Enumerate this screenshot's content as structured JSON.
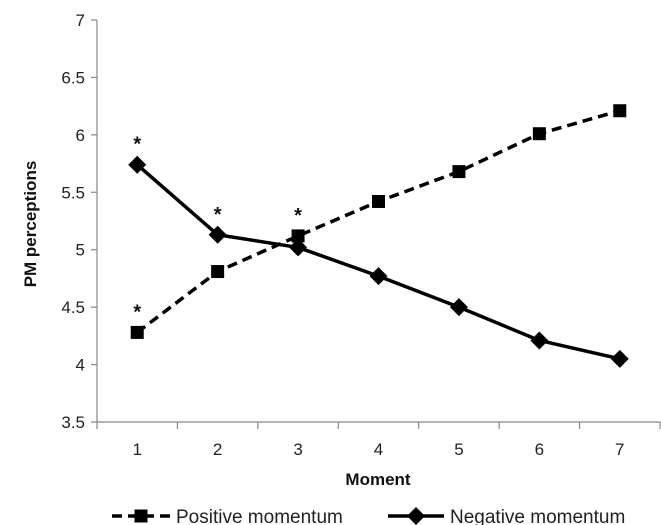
{
  "chart_data": {
    "type": "line",
    "title": "",
    "xlabel": "Moment",
    "ylabel": "PM perceptions",
    "x": [
      1,
      2,
      3,
      4,
      5,
      6,
      7
    ],
    "ylim": [
      3.5,
      7
    ],
    "yticks": [
      "3.5",
      "4",
      "4.5",
      "5",
      "5.5",
      "6",
      "6.5",
      "7"
    ],
    "xticks": [
      "1",
      "2",
      "3",
      "4",
      "5",
      "6",
      "7"
    ],
    "grid": false,
    "legend_position": "bottom",
    "series": [
      {
        "name": "Positive momentum",
        "values": [
          4.28,
          4.81,
          5.12,
          5.42,
          5.68,
          6.01,
          6.21
        ],
        "line_style": "dashed",
        "marker": "square",
        "color": "#000000"
      },
      {
        "name": "Negative momentum",
        "values": [
          5.74,
          5.13,
          5.02,
          4.77,
          4.5,
          4.21,
          4.05
        ],
        "line_style": "solid",
        "marker": "diamond",
        "color": "#000000"
      }
    ],
    "annotations": [
      {
        "text": "*",
        "x": 1,
        "y": 5.74
      },
      {
        "text": "*",
        "x": 1,
        "y": 4.28
      },
      {
        "text": "*",
        "x": 2,
        "y": 5.13
      },
      {
        "text": "*",
        "x": 3,
        "y": 5.12
      }
    ]
  }
}
